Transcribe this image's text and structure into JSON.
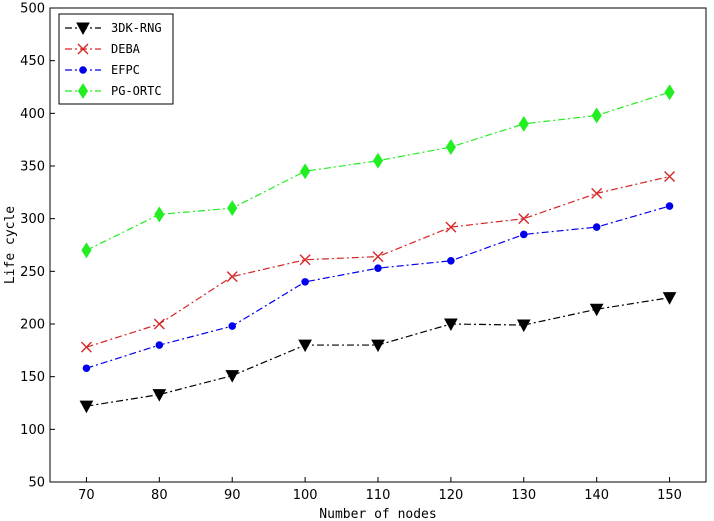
{
  "chart_data": {
    "type": "line",
    "title": "",
    "xlabel": "Number of nodes",
    "ylabel": "Life cycle",
    "x": [
      70,
      80,
      90,
      100,
      110,
      120,
      130,
      140,
      150
    ],
    "x_ticks": [
      "70",
      "80",
      "90",
      "100",
      "110",
      "120",
      "130",
      "140",
      "150"
    ],
    "ylim": [
      50,
      500
    ],
    "y_ticks": [
      "50",
      "100",
      "150",
      "200",
      "250",
      "300",
      "350",
      "400",
      "450",
      "500"
    ],
    "grid": false,
    "legend_position": "top-left",
    "series": [
      {
        "name": "3DK-RNG",
        "color": "#000000",
        "marker": "triangle-down",
        "values": [
          122,
          133,
          151,
          180,
          180,
          200,
          199,
          214,
          225
        ]
      },
      {
        "name": "DEBA",
        "color": "#d62728",
        "marker": "x",
        "values": [
          178,
          200,
          245,
          261,
          264,
          292,
          300,
          324,
          340
        ]
      },
      {
        "name": "EFPC",
        "color": "#0000ee",
        "marker": "circle",
        "values": [
          158,
          180,
          198,
          240,
          253,
          260,
          285,
          292,
          312
        ]
      },
      {
        "name": "PG-ORTC",
        "color": "#22ee22",
        "marker": "diamond",
        "values": [
          270,
          304,
          310,
          345,
          355,
          368,
          390,
          398,
          420
        ]
      }
    ]
  }
}
